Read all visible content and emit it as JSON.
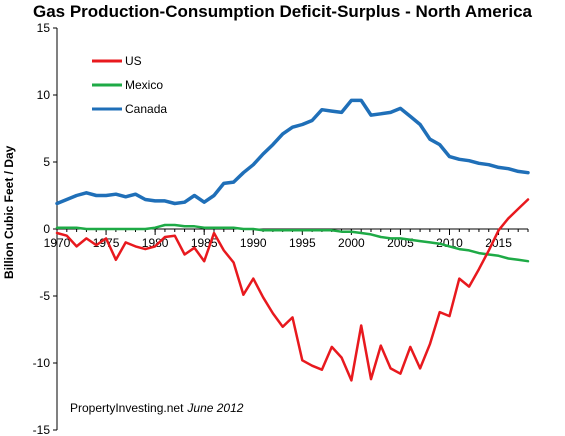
{
  "chart_data": {
    "type": "line",
    "title": "Gas Production-Consumption  Deficit-Surplus - North America",
    "xlabel": "",
    "ylabel": "Billion Cubic Feet / Day",
    "xlim": [
      1970,
      2018
    ],
    "ylim": [
      -15,
      15
    ],
    "x_ticks": [
      1970,
      1975,
      1980,
      1985,
      1990,
      1995,
      2000,
      2005,
      2010,
      2015
    ],
    "y_ticks": [
      15,
      10,
      5,
      0,
      -5,
      -10,
      -15
    ],
    "grid": false,
    "legend_position": "top-left",
    "x": [
      1970,
      1971,
      1972,
      1973,
      1974,
      1975,
      1976,
      1977,
      1978,
      1979,
      1980,
      1981,
      1982,
      1983,
      1984,
      1985,
      1986,
      1987,
      1988,
      1989,
      1990,
      1991,
      1992,
      1993,
      1994,
      1995,
      1996,
      1997,
      1998,
      1999,
      2000,
      2001,
      2002,
      2003,
      2004,
      2005,
      2006,
      2007,
      2008,
      2009,
      2010,
      2011,
      2012,
      2013,
      2014,
      2015,
      2016,
      2017,
      2018
    ],
    "series": [
      {
        "name": "US",
        "color": "#e8191e",
        "values": [
          -0.3,
          -0.5,
          -1.3,
          -0.7,
          -1.2,
          -0.7,
          -2.3,
          -1.0,
          -1.3,
          -1.5,
          -1.3,
          -0.6,
          -0.5,
          -1.9,
          -1.4,
          -2.4,
          -0.3,
          -1.6,
          -2.5,
          -4.9,
          -3.7,
          -5.1,
          -6.3,
          -7.3,
          -6.6,
          -9.8,
          -10.2,
          -10.5,
          -8.8,
          -9.6,
          -11.3,
          -7.2,
          -11.2,
          -8.7,
          -10.4,
          -10.8,
          -8.8,
          -10.4,
          -8.6,
          -6.2,
          -6.5,
          -3.7,
          -4.3,
          -3.0,
          -1.6,
          -0.1,
          0.8,
          1.5,
          2.2
        ]
      },
      {
        "name": "Mexico",
        "color": "#1eaa46",
        "values": [
          0.1,
          0.1,
          0.1,
          0.0,
          0.0,
          0.0,
          0.0,
          0.0,
          0.0,
          0.0,
          0.1,
          0.3,
          0.3,
          0.2,
          0.2,
          0.1,
          0.1,
          0.1,
          0.1,
          0.0,
          0.0,
          -0.1,
          -0.1,
          -0.1,
          -0.1,
          -0.1,
          -0.1,
          -0.1,
          -0.1,
          -0.2,
          -0.2,
          -0.3,
          -0.4,
          -0.6,
          -0.7,
          -0.7,
          -0.8,
          -0.9,
          -1.0,
          -1.1,
          -1.3,
          -1.5,
          -1.6,
          -1.8,
          -1.9,
          -2.0,
          -2.2,
          -2.3,
          -2.4
        ]
      },
      {
        "name": "Canada",
        "color": "#1f6fb8",
        "values": [
          1.9,
          2.2,
          2.5,
          2.7,
          2.5,
          2.5,
          2.6,
          2.4,
          2.6,
          2.2,
          2.1,
          2.1,
          1.9,
          2.0,
          2.5,
          2.0,
          2.5,
          3.4,
          3.5,
          4.2,
          4.8,
          5.6,
          6.3,
          7.1,
          7.6,
          7.8,
          8.1,
          8.9,
          8.8,
          8.7,
          9.6,
          9.6,
          8.5,
          8.6,
          8.7,
          9.0,
          8.4,
          7.8,
          6.7,
          6.3,
          5.4,
          5.2,
          5.1,
          4.9,
          4.8,
          4.6,
          4.5,
          4.3,
          4.2
        ]
      }
    ]
  },
  "source_note": {
    "site": "PropertyInvesting.net",
    "date": "June 2012"
  }
}
